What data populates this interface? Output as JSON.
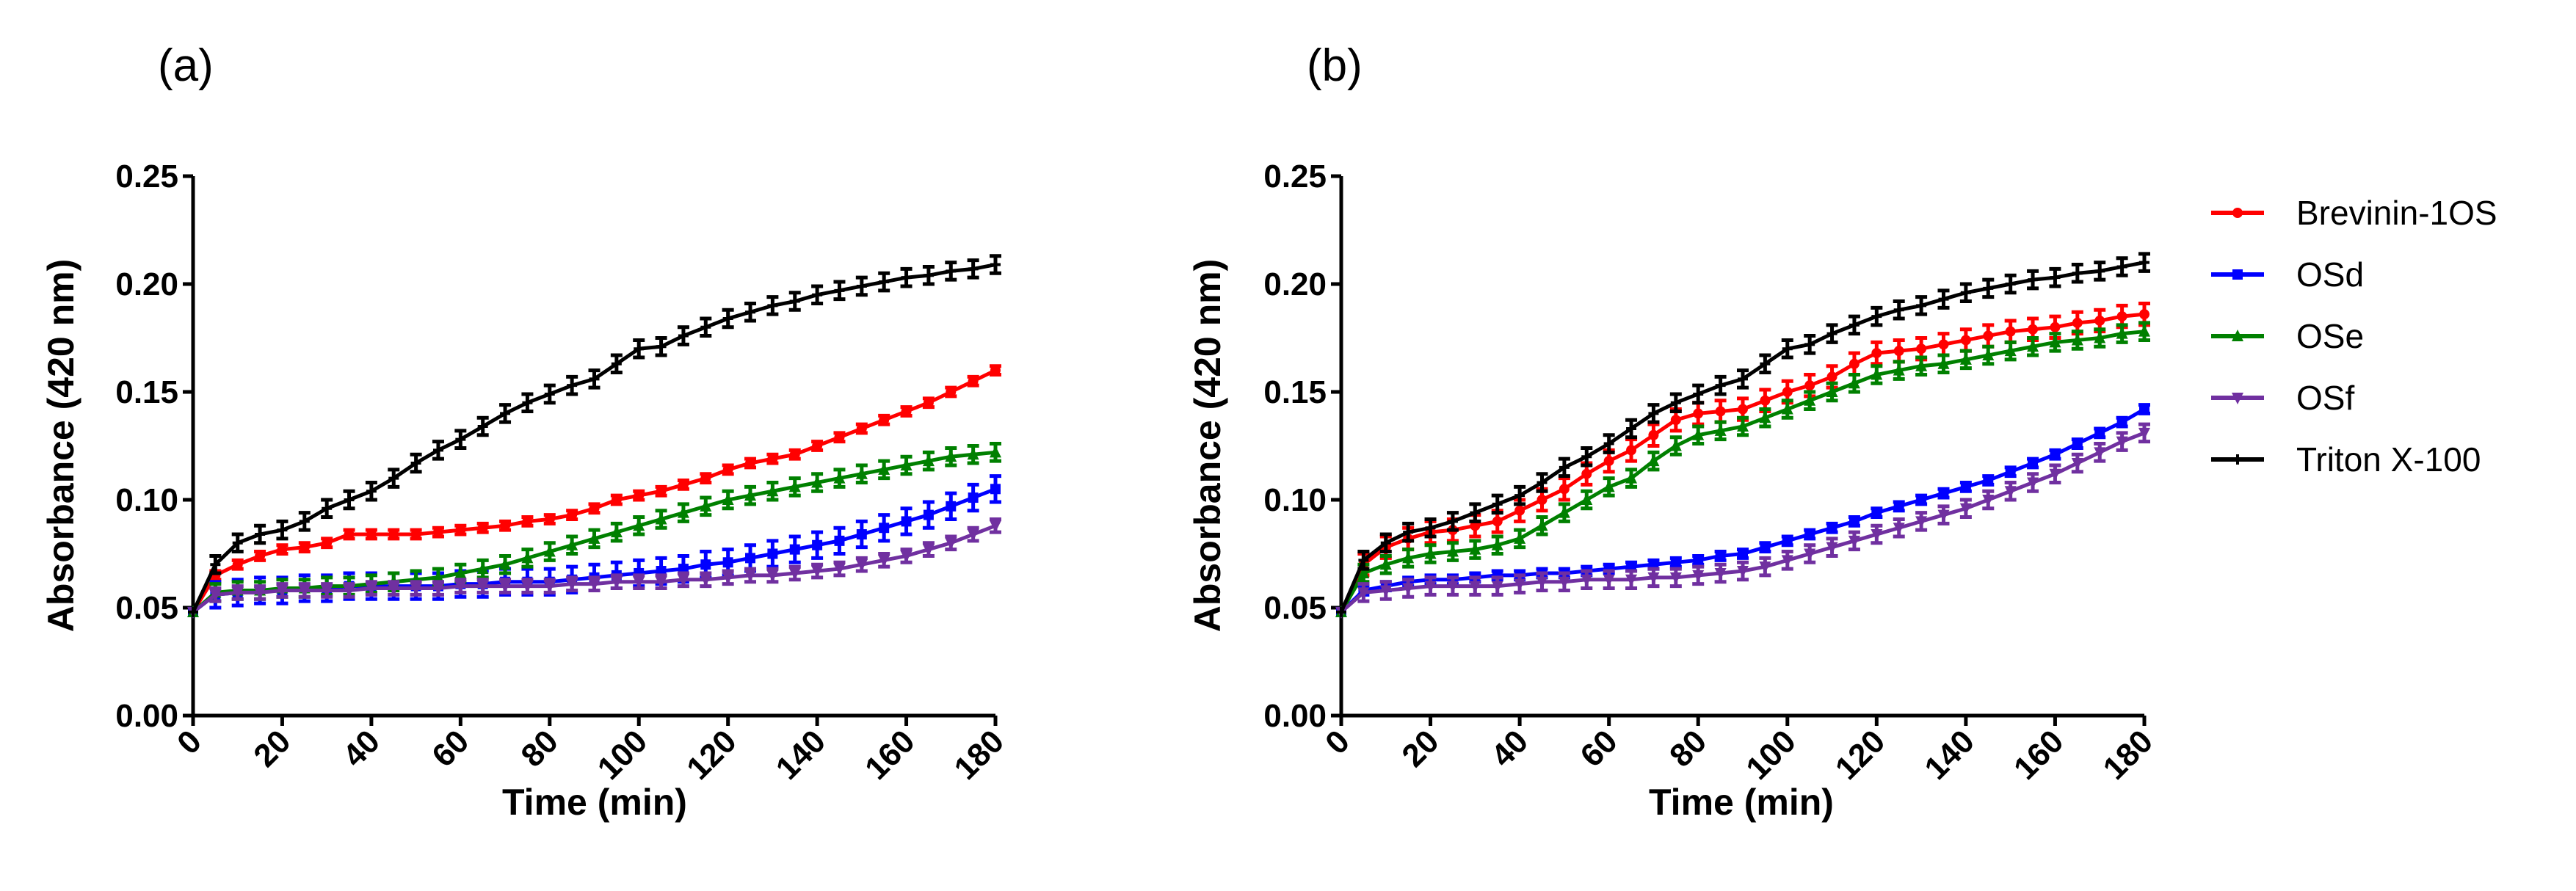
{
  "chart_data": [
    {
      "type": "line",
      "panel_label": "(a)",
      "xlabel": "Time (min)",
      "ylabel": "Absorbance (420 nm)",
      "xlim": [
        0,
        180
      ],
      "ylim": [
        0,
        0.25
      ],
      "xticks": [
        "0",
        "20",
        "40",
        "60",
        "80",
        "100",
        "120",
        "140",
        "160",
        "180"
      ],
      "yticks": [
        "0.00",
        "0.05",
        "0.10",
        "0.15",
        "0.20",
        "0.25"
      ],
      "x": [
        0,
        5,
        10,
        15,
        20,
        25,
        30,
        35,
        40,
        45,
        50,
        55,
        60,
        65,
        70,
        75,
        80,
        85,
        90,
        95,
        100,
        105,
        110,
        115,
        120,
        125,
        130,
        135,
        140,
        145,
        150,
        155,
        160,
        165,
        170,
        175,
        180
      ],
      "series": [
        {
          "name": "Brevinin-1OS",
          "color": "#ff0000",
          "marker": "circle",
          "error": 0.002,
          "values": [
            0.048,
            0.065,
            0.07,
            0.074,
            0.077,
            0.078,
            0.08,
            0.084,
            0.084,
            0.084,
            0.084,
            0.085,
            0.086,
            0.087,
            0.088,
            0.09,
            0.091,
            0.093,
            0.096,
            0.1,
            0.102,
            0.104,
            0.107,
            0.11,
            0.114,
            0.117,
            0.119,
            0.121,
            0.125,
            0.129,
            0.133,
            0.137,
            0.141,
            0.145,
            0.15,
            0.155,
            0.16
          ]
        },
        {
          "name": "OSd",
          "color": "#0000ff",
          "marker": "square",
          "error": 0.006,
          "values": [
            0.048,
            0.056,
            0.057,
            0.058,
            0.058,
            0.059,
            0.059,
            0.06,
            0.06,
            0.06,
            0.06,
            0.06,
            0.061,
            0.061,
            0.062,
            0.062,
            0.062,
            0.063,
            0.064,
            0.065,
            0.066,
            0.067,
            0.068,
            0.07,
            0.071,
            0.073,
            0.075,
            0.077,
            0.079,
            0.081,
            0.084,
            0.087,
            0.09,
            0.093,
            0.097,
            0.101,
            0.105
          ]
        },
        {
          "name": "OSe",
          "color": "#008000",
          "marker": "triangle-up",
          "error": 0.004,
          "values": [
            0.048,
            0.057,
            0.058,
            0.058,
            0.059,
            0.059,
            0.06,
            0.06,
            0.061,
            0.062,
            0.063,
            0.064,
            0.066,
            0.068,
            0.07,
            0.073,
            0.076,
            0.079,
            0.082,
            0.085,
            0.088,
            0.091,
            0.094,
            0.097,
            0.1,
            0.102,
            0.104,
            0.106,
            0.108,
            0.11,
            0.112,
            0.114,
            0.116,
            0.118,
            0.12,
            0.121,
            0.122
          ]
        },
        {
          "name": "OSf",
          "color": "#7030a0",
          "marker": "triangle-down",
          "error": 0.003,
          "values": [
            0.048,
            0.056,
            0.057,
            0.057,
            0.058,
            0.058,
            0.058,
            0.058,
            0.059,
            0.059,
            0.059,
            0.059,
            0.06,
            0.06,
            0.06,
            0.06,
            0.06,
            0.061,
            0.061,
            0.062,
            0.062,
            0.062,
            0.063,
            0.063,
            0.064,
            0.065,
            0.065,
            0.066,
            0.067,
            0.068,
            0.07,
            0.072,
            0.074,
            0.077,
            0.08,
            0.084,
            0.088
          ]
        },
        {
          "name": "Triton X-100",
          "color": "#000000",
          "marker": "plus",
          "error": 0.004,
          "values": [
            0.048,
            0.07,
            0.08,
            0.084,
            0.086,
            0.09,
            0.096,
            0.1,
            0.104,
            0.11,
            0.117,
            0.123,
            0.128,
            0.134,
            0.14,
            0.145,
            0.149,
            0.153,
            0.156,
            0.163,
            0.17,
            0.171,
            0.176,
            0.18,
            0.184,
            0.187,
            0.19,
            0.192,
            0.195,
            0.197,
            0.199,
            0.201,
            0.203,
            0.204,
            0.206,
            0.207,
            0.209
          ]
        }
      ]
    },
    {
      "type": "line",
      "panel_label": "(b)",
      "xlabel": "Time (min)",
      "ylabel": "Absorbance (420 nm)",
      "xlim": [
        0,
        180
      ],
      "ylim": [
        0,
        0.25
      ],
      "legend": "right",
      "xticks": [
        "0",
        "20",
        "40",
        "60",
        "80",
        "100",
        "120",
        "140",
        "160",
        "180"
      ],
      "yticks": [
        "0.00",
        "0.05",
        "0.10",
        "0.15",
        "0.20",
        "0.25"
      ],
      "x": [
        0,
        5,
        10,
        15,
        20,
        25,
        30,
        35,
        40,
        45,
        50,
        55,
        60,
        65,
        70,
        75,
        80,
        85,
        90,
        95,
        100,
        105,
        110,
        115,
        120,
        125,
        130,
        135,
        140,
        145,
        150,
        155,
        160,
        165,
        170,
        175,
        180
      ],
      "series": [
        {
          "name": "Brevinin-1OS",
          "color": "#ff0000",
          "marker": "circle",
          "error": 0.005,
          "values": [
            0.048,
            0.07,
            0.078,
            0.082,
            0.085,
            0.086,
            0.088,
            0.09,
            0.095,
            0.1,
            0.105,
            0.112,
            0.118,
            0.123,
            0.13,
            0.137,
            0.14,
            0.141,
            0.142,
            0.146,
            0.15,
            0.153,
            0.157,
            0.163,
            0.168,
            0.169,
            0.17,
            0.172,
            0.174,
            0.176,
            0.178,
            0.179,
            0.18,
            0.182,
            0.183,
            0.185,
            0.186
          ]
        },
        {
          "name": "OSd",
          "color": "#0000ff",
          "marker": "square",
          "error": 0.002,
          "values": [
            0.048,
            0.058,
            0.06,
            0.062,
            0.063,
            0.063,
            0.064,
            0.065,
            0.065,
            0.066,
            0.066,
            0.067,
            0.068,
            0.069,
            0.07,
            0.071,
            0.072,
            0.074,
            0.075,
            0.078,
            0.081,
            0.084,
            0.087,
            0.09,
            0.094,
            0.097,
            0.1,
            0.103,
            0.106,
            0.109,
            0.113,
            0.117,
            0.121,
            0.126,
            0.131,
            0.136,
            0.142
          ]
        },
        {
          "name": "OSe",
          "color": "#008000",
          "marker": "triangle-up",
          "error": 0.004,
          "values": [
            0.048,
            0.066,
            0.07,
            0.073,
            0.075,
            0.076,
            0.077,
            0.079,
            0.082,
            0.088,
            0.094,
            0.1,
            0.106,
            0.11,
            0.118,
            0.125,
            0.13,
            0.132,
            0.134,
            0.138,
            0.142,
            0.146,
            0.15,
            0.154,
            0.158,
            0.16,
            0.162,
            0.163,
            0.165,
            0.167,
            0.169,
            0.171,
            0.173,
            0.174,
            0.175,
            0.177,
            0.178
          ]
        },
        {
          "name": "OSf",
          "color": "#7030a0",
          "marker": "triangle-down",
          "error": 0.004,
          "values": [
            0.048,
            0.057,
            0.058,
            0.059,
            0.06,
            0.06,
            0.06,
            0.06,
            0.061,
            0.062,
            0.062,
            0.063,
            0.063,
            0.063,
            0.064,
            0.064,
            0.065,
            0.066,
            0.067,
            0.069,
            0.072,
            0.075,
            0.078,
            0.081,
            0.084,
            0.087,
            0.09,
            0.093,
            0.096,
            0.1,
            0.104,
            0.108,
            0.112,
            0.117,
            0.122,
            0.127,
            0.131
          ]
        },
        {
          "name": "Triton X-100",
          "color": "#000000",
          "marker": "plus",
          "error": 0.004,
          "values": [
            0.048,
            0.072,
            0.08,
            0.085,
            0.087,
            0.09,
            0.094,
            0.098,
            0.102,
            0.108,
            0.115,
            0.12,
            0.126,
            0.133,
            0.14,
            0.145,
            0.149,
            0.153,
            0.156,
            0.163,
            0.17,
            0.172,
            0.177,
            0.181,
            0.185,
            0.188,
            0.19,
            0.193,
            0.196,
            0.198,
            0.2,
            0.202,
            0.203,
            0.205,
            0.206,
            0.208,
            0.21
          ]
        }
      ]
    }
  ]
}
